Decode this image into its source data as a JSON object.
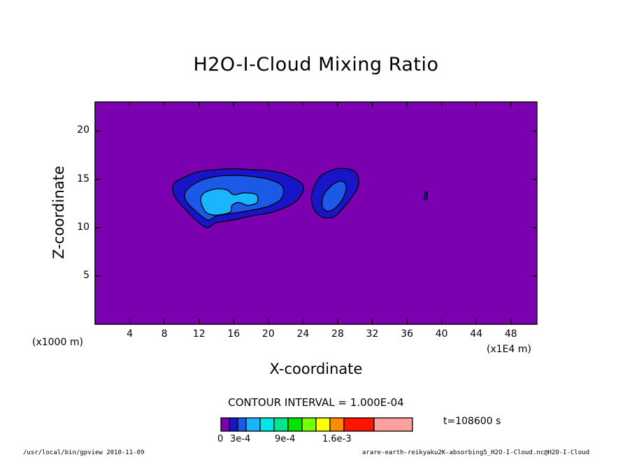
{
  "chart_data": {
    "type": "contour",
    "title": "H2O-I-Cloud Mixing Ratio",
    "xlabel": "X-coordinate",
    "ylabel": "Z-coordinate",
    "x_unit_left": "(x1000 m)",
    "x_unit_right": "(x1E4 m)",
    "xlim": [
      0,
      51
    ],
    "ylim": [
      0,
      23
    ],
    "x_ticks": [
      4,
      8,
      12,
      16,
      20,
      24,
      28,
      32,
      36,
      40,
      44,
      48
    ],
    "y_ticks": [
      5,
      10,
      15,
      20
    ],
    "contour_interval_text": "CONTOUR INTERVAL = 1.000E-04",
    "time_text": "t=108600 s",
    "background_color": "#7a00b0",
    "colorbar": {
      "colors": [
        "#7a00b0",
        "#1a14c8",
        "#1a5ae6",
        "#1ab4ff",
        "#00e6e6",
        "#00e68c",
        "#00e600",
        "#78ff00",
        "#ffff00",
        "#ff8c00",
        "#ff1400",
        "#ffa0a0"
      ],
      "labels": [
        "0",
        "3e-4",
        "9e-4",
        "1.6e-3"
      ]
    },
    "regions": [
      {
        "level": 1,
        "color": "#1a14c8",
        "points": [
          [
            9.0,
            14.4
          ],
          [
            10,
            15.1
          ],
          [
            12,
            15.8
          ],
          [
            14,
            16.0
          ],
          [
            16,
            16.1
          ],
          [
            18,
            16.0
          ],
          [
            20,
            15.9
          ],
          [
            22,
            15.5
          ],
          [
            24,
            14.4
          ],
          [
            23.5,
            13.0
          ],
          [
            22,
            12.1
          ],
          [
            20,
            11.5
          ],
          [
            18,
            11.2
          ],
          [
            16,
            10.8
          ],
          [
            14,
            10.5
          ],
          [
            13,
            10.0
          ],
          [
            12,
            10.5
          ],
          [
            10.5,
            11.8
          ],
          [
            9.2,
            13.2
          ]
        ]
      },
      {
        "level": 2,
        "color": "#1a5ae6",
        "points": [
          [
            10.5,
            13.8
          ],
          [
            12,
            14.8
          ],
          [
            14,
            15.3
          ],
          [
            16,
            15.4
          ],
          [
            18,
            15.3
          ],
          [
            20,
            15.0
          ],
          [
            21.6,
            14.3
          ],
          [
            21.5,
            13.0
          ],
          [
            20,
            12.2
          ],
          [
            18,
            11.8
          ],
          [
            16,
            11.5
          ],
          [
            14,
            11.2
          ],
          [
            13,
            10.8
          ],
          [
            11.5,
            11.8
          ],
          [
            10.5,
            12.8
          ]
        ]
      },
      {
        "level": 3,
        "color": "#1ab4ff",
        "points": [
          [
            12.2,
            12.8
          ],
          [
            12.6,
            13.6
          ],
          [
            14,
            14.0
          ],
          [
            15.2,
            13.9
          ],
          [
            16,
            13.4
          ],
          [
            17.2,
            13.6
          ],
          [
            18.6,
            13.4
          ],
          [
            18.7,
            12.6
          ],
          [
            17.6,
            12.3
          ],
          [
            16.6,
            12.6
          ],
          [
            15.8,
            12.3
          ],
          [
            15.6,
            11.6
          ],
          [
            14,
            11.3
          ],
          [
            12.8,
            11.6
          ]
        ]
      },
      {
        "level": 1,
        "color": "#1a14c8",
        "points": [
          [
            25.0,
            13.5
          ],
          [
            26,
            15.3
          ],
          [
            28,
            16.1
          ],
          [
            30,
            15.8
          ],
          [
            30.4,
            14.4
          ],
          [
            29.5,
            13.0
          ],
          [
            28,
            11.4
          ],
          [
            27,
            11.0
          ],
          [
            26,
            11.2
          ],
          [
            25.2,
            12.0
          ]
        ]
      },
      {
        "level": 2,
        "color": "#1a5ae6",
        "points": [
          [
            26.2,
            12.4
          ],
          [
            26.4,
            13.4
          ],
          [
            27.5,
            14.5
          ],
          [
            28.5,
            14.8
          ],
          [
            29.0,
            14.2
          ],
          [
            28.6,
            13.0
          ],
          [
            27.8,
            12.1
          ],
          [
            27.0,
            11.7
          ],
          [
            26.4,
            11.9
          ]
        ]
      },
      {
        "level": 1,
        "color": "#1a14c8",
        "points": [
          [
            38.0,
            13.0
          ],
          [
            38.15,
            13.7
          ],
          [
            38.35,
            13.5
          ],
          [
            38.25,
            12.9
          ]
        ]
      }
    ]
  },
  "footer": {
    "left": "/usr/local/bin/gpview  2010-11-09",
    "right": "arare-earth-reikyaku2K-absorbing5_H2O-I-Cloud.nc@H2O-I-Cloud"
  }
}
